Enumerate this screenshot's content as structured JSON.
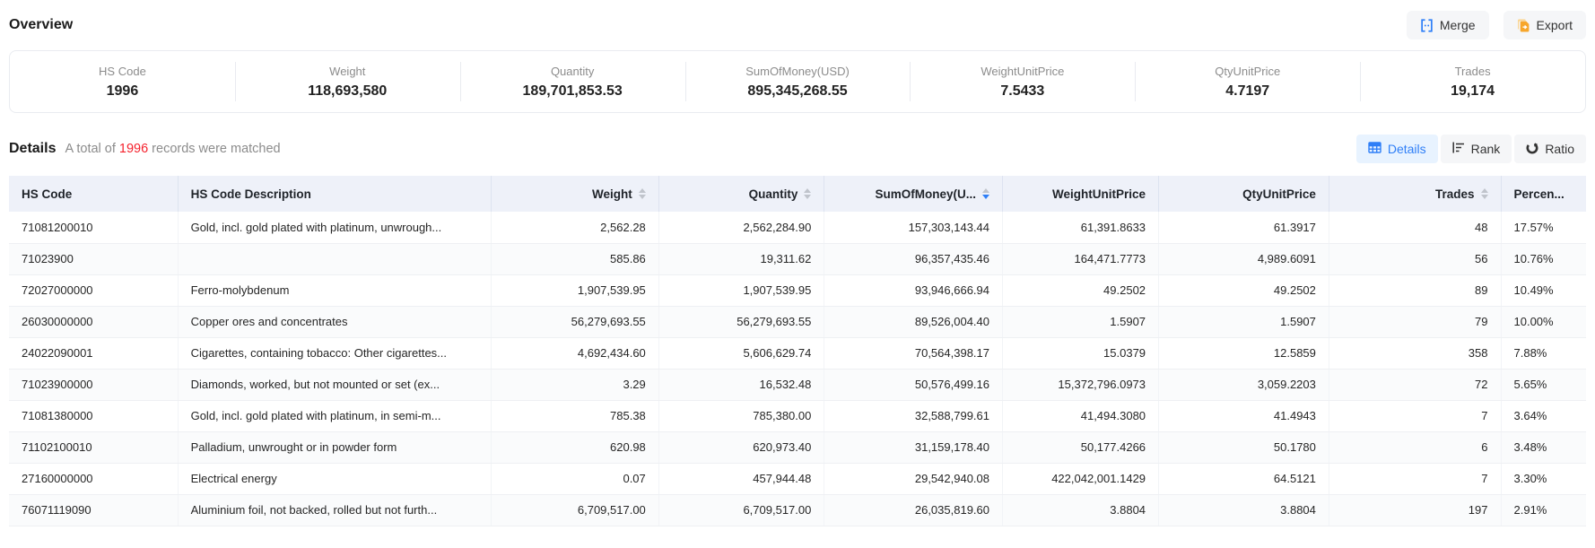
{
  "header": {
    "title": "Overview",
    "merge": {
      "label": "Merge",
      "icon": "merge-icon"
    },
    "export": {
      "label": "Export",
      "icon": "export-icon"
    }
  },
  "overview_stats": [
    {
      "label": "HS Code",
      "value": "1996"
    },
    {
      "label": "Weight",
      "value": "118,693,580"
    },
    {
      "label": "Quantity",
      "value": "189,701,853.53"
    },
    {
      "label": "SumOfMoney(USD)",
      "value": "895,345,268.55"
    },
    {
      "label": "WeightUnitPrice",
      "value": "7.5433"
    },
    {
      "label": "QtyUnitPrice",
      "value": "4.7197"
    },
    {
      "label": "Trades",
      "value": "19,174"
    }
  ],
  "details": {
    "title": "Details",
    "match_prefix": "A total of",
    "match_count": "1996",
    "match_suffix": "records were matched",
    "views": [
      {
        "label": "Details",
        "icon": "table-icon",
        "active": true
      },
      {
        "label": "Rank",
        "icon": "rank-icon",
        "active": false
      },
      {
        "label": "Ratio",
        "icon": "ratio-icon",
        "active": false
      }
    ]
  },
  "table": {
    "columns": [
      {
        "label": "HS Code",
        "align": "left",
        "sortable": false
      },
      {
        "label": "HS Code Description",
        "align": "left",
        "sortable": false
      },
      {
        "label": "Weight",
        "align": "right",
        "sortable": true,
        "sort": null
      },
      {
        "label": "Quantity",
        "align": "right",
        "sortable": true,
        "sort": null
      },
      {
        "label": "SumOfMoney(U...",
        "align": "right",
        "sortable": true,
        "sort": "desc"
      },
      {
        "label": "WeightUnitPrice",
        "align": "right",
        "sortable": false
      },
      {
        "label": "QtyUnitPrice",
        "align": "right",
        "sortable": false
      },
      {
        "label": "Trades",
        "align": "right",
        "sortable": true,
        "sort": null
      },
      {
        "label": "Percen...",
        "align": "left",
        "sortable": false
      }
    ],
    "rows": [
      [
        "71081200010",
        "Gold, incl. gold plated with platinum, unwrough...",
        "2,562.28",
        "2,562,284.90",
        "157,303,143.44",
        "61,391.8633",
        "61.3917",
        "48",
        "17.57%"
      ],
      [
        "71023900",
        "",
        "585.86",
        "19,311.62",
        "96,357,435.46",
        "164,471.7773",
        "4,989.6091",
        "56",
        "10.76%"
      ],
      [
        "72027000000",
        "Ferro-molybdenum",
        "1,907,539.95",
        "1,907,539.95",
        "93,946,666.94",
        "49.2502",
        "49.2502",
        "89",
        "10.49%"
      ],
      [
        "26030000000",
        "Copper ores and concentrates",
        "56,279,693.55",
        "56,279,693.55",
        "89,526,004.40",
        "1.5907",
        "1.5907",
        "79",
        "10.00%"
      ],
      [
        "24022090001",
        "Cigarettes, containing tobacco: Other cigarettes...",
        "4,692,434.60",
        "5,606,629.74",
        "70,564,398.17",
        "15.0379",
        "12.5859",
        "358",
        "7.88%"
      ],
      [
        "71023900000",
        "Diamonds, worked, but not mounted or set (ex...",
        "3.29",
        "16,532.48",
        "50,576,499.16",
        "15,372,796.0973",
        "3,059.2203",
        "72",
        "5.65%"
      ],
      [
        "71081380000",
        "Gold, incl. gold plated with platinum, in semi-m...",
        "785.38",
        "785,380.00",
        "32,588,799.61",
        "41,494.3080",
        "41.4943",
        "7",
        "3.64%"
      ],
      [
        "71102100010",
        "Palladium, unwrought or in powder form",
        "620.98",
        "620,973.40",
        "31,159,178.40",
        "50,177.4266",
        "50.1780",
        "6",
        "3.48%"
      ],
      [
        "27160000000",
        "Electrical energy",
        "0.07",
        "457,944.48",
        "29,542,940.08",
        "422,042,001.1429",
        "64.5121",
        "7",
        "3.30%"
      ],
      [
        "76071119090",
        "Aluminium foil, not backed, rolled but not furth...",
        "6,709,517.00",
        "6,709,517.00",
        "26,035,819.60",
        "3.8804",
        "3.8804",
        "197",
        "2.91%"
      ]
    ]
  },
  "colors": {
    "accent": "#2f7ff7",
    "active_view_bg": "#e8f3ff",
    "danger": "#f5222d",
    "export_icon": "#f7a62b",
    "table_header_bg": "#eef1f9"
  }
}
